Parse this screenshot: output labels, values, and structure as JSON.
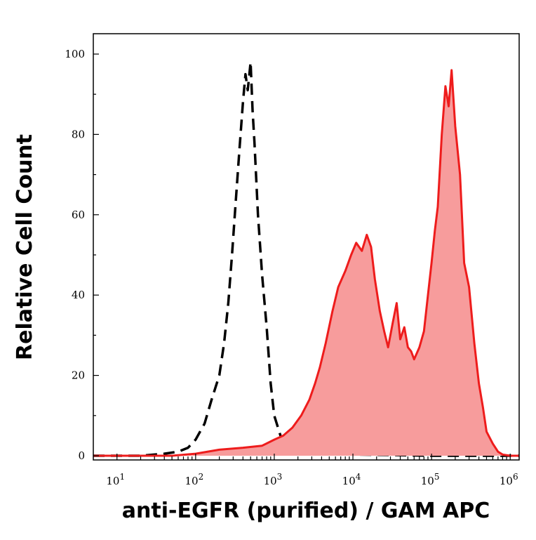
{
  "chart_data": {
    "type": "area",
    "xlabel": "anti-EGFR (purified) / GAM APC",
    "ylabel": "Relative Cell Count",
    "x_scale": "log",
    "xlim": [
      5,
      1300000
    ],
    "ylim": [
      0,
      100
    ],
    "grid": false,
    "x_ticks": [
      {
        "value": 10,
        "base": "10",
        "exp": "1"
      },
      {
        "value": 100,
        "base": "10",
        "exp": "2"
      },
      {
        "value": 1000,
        "base": "10",
        "exp": "3"
      },
      {
        "value": 10000,
        "base": "10",
        "exp": "4"
      },
      {
        "value": 100000,
        "base": "10",
        "exp": "5"
      },
      {
        "value": 1000000,
        "base": "10",
        "exp": "6"
      }
    ],
    "y_ticks": [
      {
        "value": 0,
        "label": "0"
      },
      {
        "value": 20,
        "label": "20"
      },
      {
        "value": 40,
        "label": "40"
      },
      {
        "value": 60,
        "label": "60"
      },
      {
        "value": 80,
        "label": "80"
      },
      {
        "value": 100,
        "label": "100"
      }
    ],
    "series": [
      {
        "style": "dashed",
        "color": "#000000",
        "fill": null,
        "x": [
          5,
          20,
          40,
          60,
          80,
          100,
          130,
          160,
          200,
          230,
          260,
          290,
          320,
          360,
          400,
          430,
          460,
          500,
          530,
          560,
          620,
          700,
          800,
          900,
          1000,
          1200,
          1500,
          2000,
          3000,
          5000,
          10000,
          30000,
          100000,
          300000,
          1000000,
          1300000
        ],
        "y": [
          0,
          0,
          0.5,
          1,
          2,
          4,
          8,
          14,
          20,
          28,
          38,
          50,
          62,
          76,
          88,
          95,
          91,
          98,
          86,
          78,
          60,
          45,
          32,
          18,
          10,
          5,
          3,
          1.5,
          1,
          0.5,
          0.3,
          0.2,
          0,
          0,
          0,
          0
        ]
      },
      {
        "style": "solid",
        "color": "#ee1c1c",
        "fill": "#f79c9c",
        "x": [
          5,
          50,
          100,
          200,
          400,
          700,
          1000,
          1300,
          1700,
          2200,
          2800,
          3300,
          3800,
          4500,
          5500,
          6500,
          8000,
          9500,
          11000,
          13000,
          15000,
          17000,
          19000,
          22000,
          25000,
          28000,
          32000,
          36000,
          40000,
          45000,
          50000,
          55000,
          60000,
          70000,
          80000,
          90000,
          100000,
          110000,
          120000,
          135000,
          150000,
          165000,
          180000,
          200000,
          230000,
          260000,
          300000,
          350000,
          400000,
          450000,
          500000,
          600000,
          700000,
          800000,
          1000000,
          1300000
        ],
        "y": [
          0,
          0,
          0.5,
          1.5,
          2,
          2.5,
          4,
          5,
          7,
          10,
          14,
          18,
          22,
          28,
          36,
          42,
          46,
          50,
          53,
          51,
          55,
          52,
          44,
          36,
          31,
          27,
          33,
          38,
          29,
          32,
          27,
          26,
          24,
          27,
          31,
          40,
          48,
          56,
          62,
          80,
          92,
          87,
          96,
          82,
          70,
          48,
          42,
          28,
          18,
          12,
          6,
          3,
          1,
          0.3,
          0,
          0
        ]
      }
    ]
  }
}
